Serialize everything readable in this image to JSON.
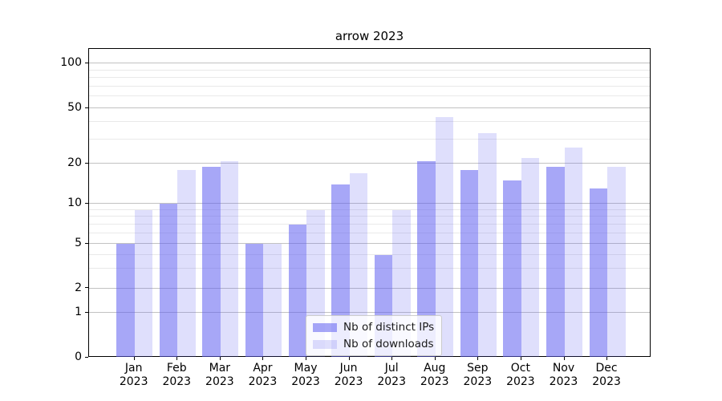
{
  "title": "arrow 2023",
  "chart_data": {
    "type": "bar",
    "title": "arrow 2023",
    "categories": [
      "Jan 2023",
      "Feb 2023",
      "Mar 2023",
      "Apr 2023",
      "May 2023",
      "Jun 2023",
      "Jul 2023",
      "Aug 2023",
      "Sep 2023",
      "Oct 2023",
      "Nov 2023",
      "Dec 2023"
    ],
    "x_tick_line1": [
      "Jan",
      "Feb",
      "Mar",
      "Apr",
      "May",
      "Jun",
      "Jul",
      "Aug",
      "Sep",
      "Oct",
      "Nov",
      "Dec"
    ],
    "x_tick_line2": [
      "2023",
      "2023",
      "2023",
      "2023",
      "2023",
      "2023",
      "2023",
      "2023",
      "2023",
      "2023",
      "2023",
      "2023"
    ],
    "series": [
      {
        "name": "Nb of distinct IPs",
        "color": "rgba(95,95,240,0.55)",
        "values": [
          5,
          10,
          19,
          5,
          7,
          14,
          4,
          21,
          18,
          15,
          19,
          13
        ]
      },
      {
        "name": "Nb of downloads",
        "color": "rgba(95,95,240,0.20)",
        "values": [
          9,
          18,
          21,
          5,
          9,
          17,
          9,
          43,
          33,
          22,
          26,
          19
        ]
      }
    ],
    "xlabel": "",
    "ylabel": "",
    "yscale": "log-like (symlog, linear below 1)",
    "ylim": [
      0,
      125
    ],
    "y_major_ticks": [
      0,
      1,
      2,
      5,
      10,
      20,
      50,
      100
    ],
    "y_minor_ticks": [
      3,
      4,
      6,
      7,
      8,
      9,
      30,
      40,
      60,
      70,
      80,
      90
    ],
    "grid": "horizontal major + minor",
    "legend_position": "lower center",
    "bar_color_hex_on_white": {
      "distinct_ips": "#a7a7f7",
      "downloads": "#dfdffb"
    }
  },
  "legend": {
    "items": [
      {
        "label": "Nb of distinct IPs"
      },
      {
        "label": "Nb of downloads"
      }
    ]
  }
}
